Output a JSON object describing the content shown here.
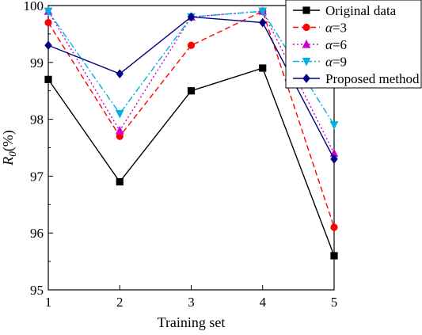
{
  "chart_data": {
    "type": "line",
    "xlabel": "Training set",
    "ylabel_main": "R",
    "ylabel_sub": "0",
    "ylabel_suffix": "(%)",
    "x": [
      1,
      2,
      3,
      4,
      5
    ],
    "xticks": [
      "1",
      "2",
      "3",
      "4",
      "5"
    ],
    "ylim": [
      95,
      100
    ],
    "yticks": [
      "95",
      "96",
      "97",
      "98",
      "99",
      "100"
    ],
    "grid": false,
    "legend_position": "top-right",
    "series": [
      {
        "name": "Original data",
        "prefix": "",
        "label": "Original data",
        "color": "#000000",
        "dash": "solid",
        "marker": "square",
        "values": [
          98.7,
          96.9,
          98.5,
          98.9,
          95.6
        ]
      },
      {
        "name": "α=3",
        "prefix": "α",
        "label": "=3",
        "color": "#ff0000",
        "dash": "dashed",
        "marker": "circle",
        "values": [
          99.7,
          97.7,
          99.3,
          99.9,
          96.1
        ]
      },
      {
        "name": "α=6",
        "prefix": "α",
        "label": "=6",
        "color": "#cc00cc",
        "dash": "dotted",
        "marker": "triangle-up",
        "values": [
          99.9,
          97.8,
          99.8,
          99.9,
          97.4
        ]
      },
      {
        "name": "α=9",
        "prefix": "α",
        "label": "=9",
        "color": "#00b0e0",
        "dash": "dashdot",
        "marker": "triangle-down",
        "values": [
          99.9,
          98.1,
          99.8,
          99.9,
          97.9
        ]
      },
      {
        "name": "Proposed method",
        "prefix": "",
        "label": "Proposed method",
        "color": "#000080",
        "dash": "solid",
        "marker": "diamond",
        "values": [
          99.3,
          98.8,
          99.8,
          99.7,
          97.3
        ]
      }
    ]
  }
}
